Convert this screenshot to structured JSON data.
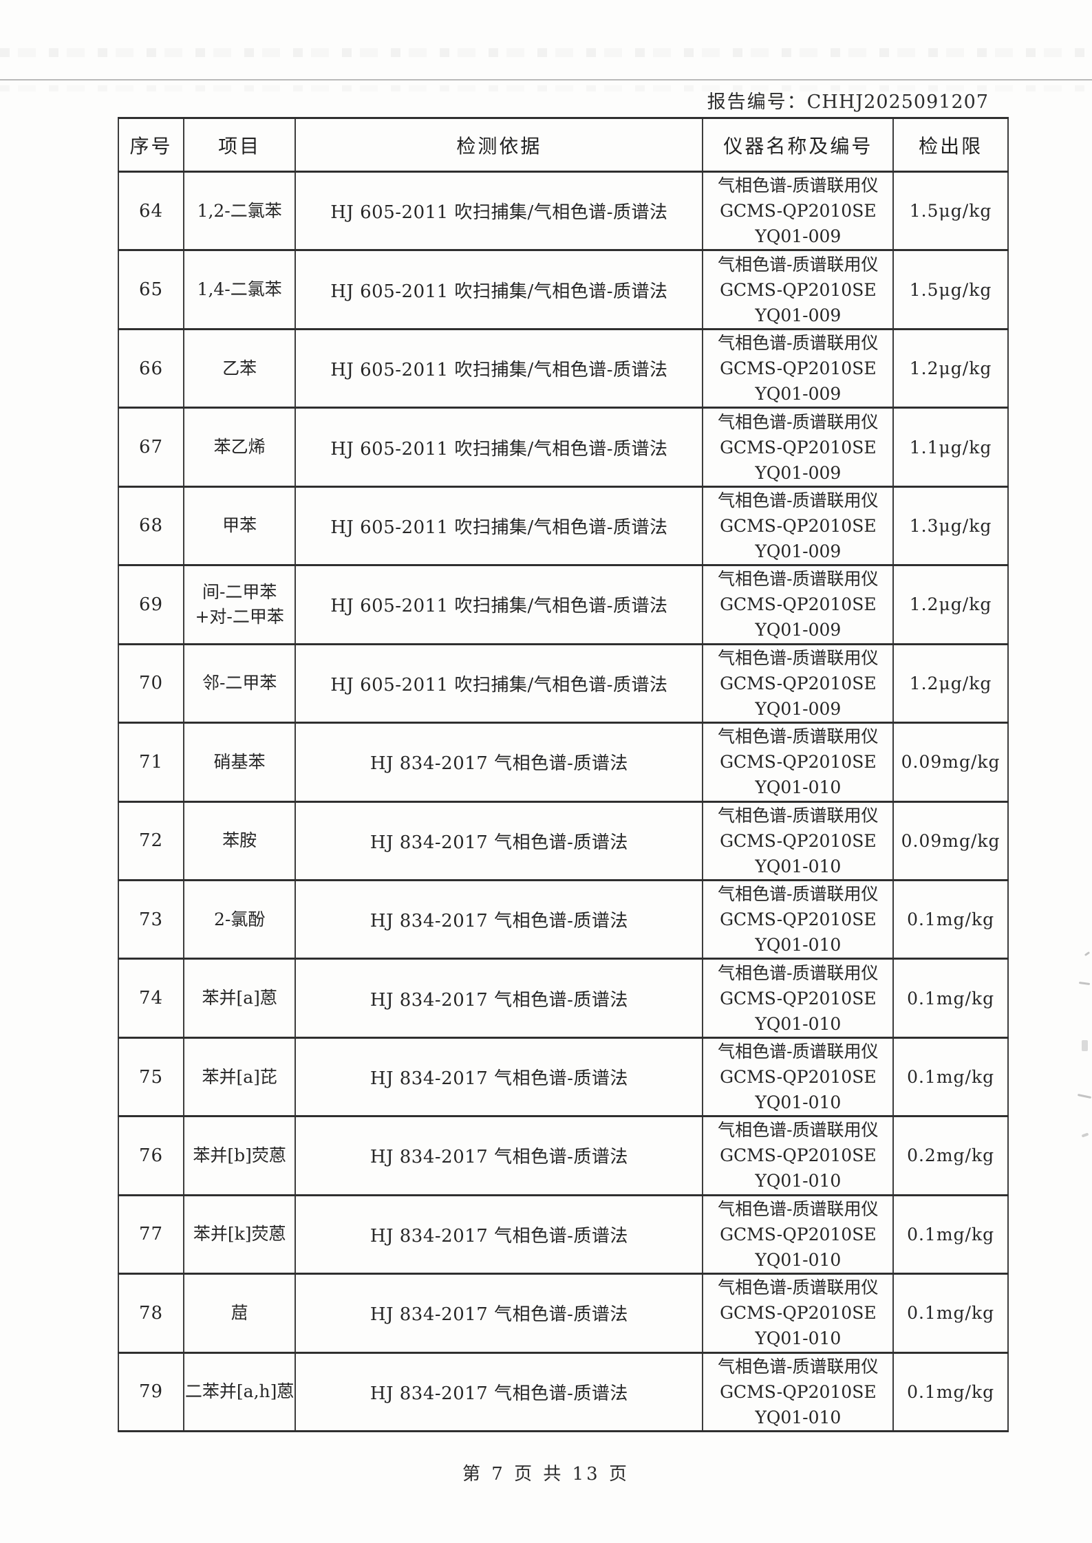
{
  "page": {
    "report_label": "报告编号：",
    "report_value": "CHHJ2025091207",
    "footer": "第 7 页 共 13 页"
  },
  "table": {
    "headers": [
      "序号",
      "项目",
      "检测依据",
      "仪器名称及编号",
      "检出限"
    ],
    "rows": [
      {
        "no": "64",
        "item": "1,2-二氯苯",
        "method": "HJ 605-2011 吹扫捕集/气相色谱-质谱法",
        "instrument": "气相色谱-质谱联用仪",
        "model": "GCMS-QP2010SE",
        "serial": "YQ01-009",
        "limit": "1.5μg/kg"
      },
      {
        "no": "65",
        "item": "1,4-二氯苯",
        "method": "HJ 605-2011 吹扫捕集/气相色谱-质谱法",
        "instrument": "气相色谱-质谱联用仪",
        "model": "GCMS-QP2010SE",
        "serial": "YQ01-009",
        "limit": "1.5μg/kg"
      },
      {
        "no": "66",
        "item": "乙苯",
        "method": "HJ 605-2011 吹扫捕集/气相色谱-质谱法",
        "instrument": "气相色谱-质谱联用仪",
        "model": "GCMS-QP2010SE",
        "serial": "YQ01-009",
        "limit": "1.2μg/kg"
      },
      {
        "no": "67",
        "item": "苯乙烯",
        "method": "HJ 605-2011 吹扫捕集/气相色谱-质谱法",
        "instrument": "气相色谱-质谱联用仪",
        "model": "GCMS-QP2010SE",
        "serial": "YQ01-009",
        "limit": "1.1μg/kg"
      },
      {
        "no": "68",
        "item": "甲苯",
        "method": "HJ 605-2011 吹扫捕集/气相色谱-质谱法",
        "instrument": "气相色谱-质谱联用仪",
        "model": "GCMS-QP2010SE",
        "serial": "YQ01-009",
        "limit": "1.3μg/kg"
      },
      {
        "no": "69",
        "item": "间-二甲苯+对-二甲苯",
        "method": "HJ 605-2011 吹扫捕集/气相色谱-质谱法",
        "instrument": "气相色谱-质谱联用仪",
        "model": "GCMS-QP2010SE",
        "serial": "YQ01-009",
        "limit": "1.2μg/kg"
      },
      {
        "no": "70",
        "item": "邻-二甲苯",
        "method": "HJ 605-2011 吹扫捕集/气相色谱-质谱法",
        "instrument": "气相色谱-质谱联用仪",
        "model": "GCMS-QP2010SE",
        "serial": "YQ01-009",
        "limit": "1.2μg/kg"
      },
      {
        "no": "71",
        "item": "硝基苯",
        "method": "HJ 834-2017 气相色谱-质谱法",
        "instrument": "气相色谱-质谱联用仪",
        "model": "GCMS-QP2010SE",
        "serial": "YQ01-010",
        "limit": "0.09mg/kg"
      },
      {
        "no": "72",
        "item": "苯胺",
        "method": "HJ 834-2017 气相色谱-质谱法",
        "instrument": "气相色谱-质谱联用仪",
        "model": "GCMS-QP2010SE",
        "serial": "YQ01-010",
        "limit": "0.09mg/kg"
      },
      {
        "no": "73",
        "item": "2-氯酚",
        "method": "HJ 834-2017 气相色谱-质谱法",
        "instrument": "气相色谱-质谱联用仪",
        "model": "GCMS-QP2010SE",
        "serial": "YQ01-010",
        "limit": "0.1mg/kg"
      },
      {
        "no": "74",
        "item": "苯并[a]蒽",
        "method": "HJ 834-2017 气相色谱-质谱法",
        "instrument": "气相色谱-质谱联用仪",
        "model": "GCMS-QP2010SE",
        "serial": "YQ01-010",
        "limit": "0.1mg/kg"
      },
      {
        "no": "75",
        "item": "苯并[a]芘",
        "method": "HJ 834-2017 气相色谱-质谱法",
        "instrument": "气相色谱-质谱联用仪",
        "model": "GCMS-QP2010SE",
        "serial": "YQ01-010",
        "limit": "0.1mg/kg"
      },
      {
        "no": "76",
        "item": "苯并[b]荧蒽",
        "method": "HJ 834-2017 气相色谱-质谱法",
        "instrument": "气相色谱-质谱联用仪",
        "model": "GCMS-QP2010SE",
        "serial": "YQ01-010",
        "limit": "0.2mg/kg"
      },
      {
        "no": "77",
        "item": "苯并[k]荧蒽",
        "method": "HJ 834-2017 气相色谱-质谱法",
        "instrument": "气相色谱-质谱联用仪",
        "model": "GCMS-QP2010SE",
        "serial": "YQ01-010",
        "limit": "0.1mg/kg"
      },
      {
        "no": "78",
        "item": "䓛",
        "method": "HJ 834-2017 气相色谱-质谱法",
        "instrument": "气相色谱-质谱联用仪",
        "model": "GCMS-QP2010SE",
        "serial": "YQ01-010",
        "limit": "0.1mg/kg"
      },
      {
        "no": "79",
        "item": "二苯并[a,h]蒽",
        "method": "HJ 834-2017 气相色谱-质谱法",
        "instrument": "气相色谱-质谱联用仪",
        "model": "GCMS-QP2010SE",
        "serial": "YQ01-010",
        "limit": "0.1mg/kg"
      }
    ]
  }
}
